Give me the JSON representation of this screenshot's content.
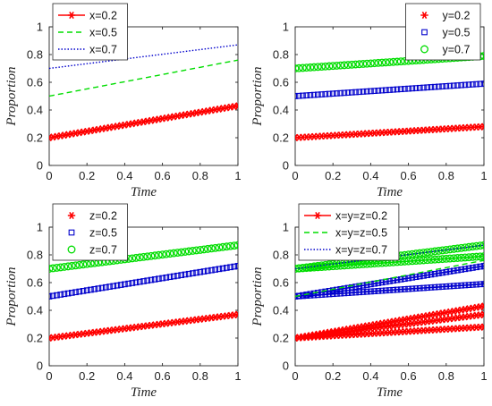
{
  "colors": {
    "red": "#ff0000",
    "green": "#00dd00",
    "blue": "#0000cc",
    "axis": "#262626"
  },
  "chart_data": [
    {
      "type": "line",
      "title": "",
      "xlabel": "Time",
      "ylabel": "Proportion",
      "xlim": [
        0,
        1
      ],
      "ylim": [
        0,
        1
      ],
      "xticks": [
        "0",
        "0.2",
        "0.4",
        "0.6",
        "0.8",
        "1"
      ],
      "yticks": [
        "0",
        "0.2",
        "0.4",
        "0.6",
        "0.8",
        "1"
      ],
      "legend_position": "top-left",
      "series": [
        {
          "name": "x=0.2",
          "color": "red",
          "line": "solid",
          "marker": "star",
          "y0": 0.2,
          "y1": 0.43
        },
        {
          "name": "x=0.5",
          "color": "green",
          "line": "dashed",
          "marker": "none",
          "y0": 0.5,
          "y1": 0.76
        },
        {
          "name": "x=0.7",
          "color": "blue",
          "line": "dotted",
          "marker": "none",
          "y0": 0.7,
          "y1": 0.87
        }
      ]
    },
    {
      "type": "line",
      "title": "",
      "xlabel": "Time",
      "ylabel": "Proportion",
      "xlim": [
        0,
        1
      ],
      "ylim": [
        0,
        1
      ],
      "xticks": [
        "0",
        "0.2",
        "0.4",
        "0.6",
        "0.8",
        "1"
      ],
      "yticks": [
        "0",
        "0.2",
        "0.4",
        "0.6",
        "0.8",
        "1"
      ],
      "legend_position": "top-right",
      "series": [
        {
          "name": "y=0.2",
          "color": "red",
          "line": "none",
          "marker": "star",
          "y0": 0.2,
          "y1": 0.28
        },
        {
          "name": "y=0.5",
          "color": "blue",
          "line": "none",
          "marker": "square",
          "y0": 0.5,
          "y1": 0.59
        },
        {
          "name": "y=0.7",
          "color": "green",
          "line": "none",
          "marker": "circle",
          "y0": 0.7,
          "y1": 0.79
        }
      ]
    },
    {
      "type": "line",
      "title": "",
      "xlabel": "Time",
      "ylabel": "Proportion",
      "xlim": [
        0,
        1
      ],
      "ylim": [
        0,
        1
      ],
      "xticks": [
        "0",
        "0.2",
        "0.4",
        "0.6",
        "0.8",
        "1"
      ],
      "yticks": [
        "0",
        "0.2",
        "0.4",
        "0.6",
        "0.8",
        "1"
      ],
      "legend_position": "top-left",
      "series": [
        {
          "name": "z=0.2",
          "color": "red",
          "line": "none",
          "marker": "star",
          "y0": 0.2,
          "y1": 0.37
        },
        {
          "name": "z=0.5",
          "color": "blue",
          "line": "none",
          "marker": "square",
          "y0": 0.5,
          "y1": 0.72
        },
        {
          "name": "z=0.7",
          "color": "green",
          "line": "none",
          "marker": "circle",
          "y0": 0.7,
          "y1": 0.87
        }
      ]
    },
    {
      "type": "line",
      "title": "",
      "xlabel": "Time",
      "ylabel": "Proportion",
      "xlim": [
        0,
        1
      ],
      "ylim": [
        0,
        1
      ],
      "xticks": [
        "0",
        "0.2",
        "0.4",
        "0.6",
        "0.8",
        "1"
      ],
      "yticks": [
        "0",
        "0.2",
        "0.4",
        "0.6",
        "0.8",
        "1"
      ],
      "legend_position": "top-left",
      "series": [
        {
          "name": "x=y=z=0.2",
          "color": "red",
          "line": "solid",
          "marker": "star",
          "y0": 0.2,
          "y1": 0.43
        },
        {
          "name": "x=y=z=0.5",
          "color": "green",
          "line": "dashed",
          "marker": "none",
          "y0": 0.5,
          "y1": 0.76
        },
        {
          "name": "x=y=z=0.7",
          "color": "blue",
          "line": "dotted",
          "marker": "none",
          "y0": 0.7,
          "y1": 0.87
        }
      ],
      "overlay_series": [
        {
          "color": "red",
          "line": "solid",
          "marker": "star",
          "y0": 0.2,
          "y1": 0.37
        },
        {
          "color": "red",
          "line": "solid",
          "marker": "star",
          "y0": 0.2,
          "y1": 0.28
        },
        {
          "color": "blue",
          "line": "solid",
          "marker": "square",
          "y0": 0.5,
          "y1": 0.72
        },
        {
          "color": "blue",
          "line": "solid",
          "marker": "square",
          "y0": 0.5,
          "y1": 0.59
        },
        {
          "color": "green",
          "line": "solid",
          "marker": "circle",
          "y0": 0.7,
          "y1": 0.87
        },
        {
          "color": "green",
          "line": "solid",
          "marker": "circle",
          "y0": 0.7,
          "y1": 0.79
        }
      ]
    }
  ]
}
